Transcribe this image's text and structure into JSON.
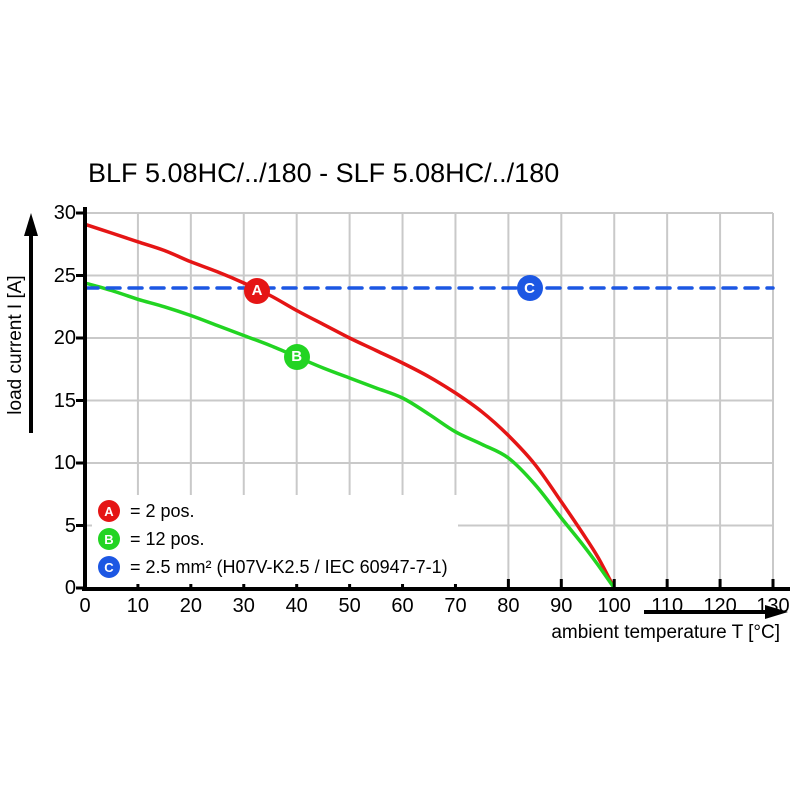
{
  "title": "BLF 5.08HC/../180 - SLF 5.08HC/../180",
  "colors": {
    "red": "#e51515",
    "green": "#22d422",
    "blue": "#1c57e3",
    "grid": "#c9c9c9",
    "axis": "#000000",
    "background": "#ffffff"
  },
  "axes": {
    "x_label": "ambient temperature T [°C]",
    "y_label": "load current I [A]"
  },
  "legend": {
    "items": [
      {
        "key": "A",
        "color": "#e51515",
        "text": "= 2 pos."
      },
      {
        "key": "B",
        "color": "#22d422",
        "text": "= 12 pos."
      },
      {
        "key": "C",
        "color": "#1c57e3",
        "text": "= 2.5 mm² (H07V-K2.5 / IEC 60947-7-1)"
      }
    ]
  },
  "chart_data": {
    "type": "line",
    "title": "BLF 5.08HC/../180 - SLF 5.08HC/../180",
    "xlabel": "ambient temperature T [°C]",
    "ylabel": "load current I [A]",
    "xlim": [
      0,
      130
    ],
    "ylim": [
      0,
      30
    ],
    "x_ticks": [
      0,
      10,
      20,
      30,
      40,
      50,
      60,
      70,
      80,
      90,
      100,
      110,
      120,
      130
    ],
    "y_ticks": [
      0,
      5,
      10,
      15,
      20,
      25,
      30
    ],
    "grid": true,
    "legend_position": "bottom-left",
    "series": [
      {
        "key": "a",
        "name": "A = 2 pos.",
        "color": "#e51515",
        "style": "solid",
        "points": [
          [
            0,
            29.1
          ],
          [
            5,
            28.4
          ],
          [
            10,
            27.7
          ],
          [
            15,
            27.0
          ],
          [
            20,
            26.1
          ],
          [
            25,
            25.3
          ],
          [
            30,
            24.4
          ],
          [
            35,
            23.4
          ],
          [
            40,
            22.2
          ],
          [
            45,
            21.1
          ],
          [
            50,
            20.0
          ],
          [
            55,
            19.0
          ],
          [
            60,
            18.0
          ],
          [
            65,
            16.9
          ],
          [
            70,
            15.6
          ],
          [
            75,
            14.1
          ],
          [
            80,
            12.2
          ],
          [
            85,
            9.9
          ],
          [
            90,
            6.9
          ],
          [
            94,
            4.4
          ],
          [
            97,
            2.4
          ],
          [
            100,
            0
          ]
        ]
      },
      {
        "key": "b",
        "name": "B = 12 pos.",
        "color": "#22d422",
        "style": "solid",
        "points": [
          [
            0,
            24.4
          ],
          [
            5,
            23.8
          ],
          [
            10,
            23.1
          ],
          [
            15,
            22.5
          ],
          [
            20,
            21.8
          ],
          [
            25,
            21.0
          ],
          [
            30,
            20.2
          ],
          [
            35,
            19.4
          ],
          [
            40,
            18.5
          ],
          [
            45,
            17.6
          ],
          [
            50,
            16.8
          ],
          [
            55,
            16.0
          ],
          [
            60,
            15.2
          ],
          [
            65,
            13.9
          ],
          [
            70,
            12.5
          ],
          [
            75,
            11.5
          ],
          [
            80,
            10.4
          ],
          [
            85,
            8.3
          ],
          [
            90,
            5.6
          ],
          [
            94,
            3.5
          ],
          [
            97,
            1.8
          ],
          [
            100,
            0
          ]
        ]
      },
      {
        "key": "c",
        "name": "C = 2.5 mm² (H07V-K2.5 / IEC 60947-7-1)",
        "color": "#1c57e3",
        "style": "dashed",
        "points": [
          [
            0,
            24
          ],
          [
            130,
            24
          ]
        ]
      }
    ],
    "markers": [
      {
        "label": "A",
        "color": "#e51515",
        "x": 32.5,
        "y": 23.8
      },
      {
        "label": "B",
        "color": "#22d422",
        "x": 40,
        "y": 18.5
      },
      {
        "label": "C",
        "color": "#1c57e3",
        "x": 84,
        "y": 24
      }
    ]
  }
}
